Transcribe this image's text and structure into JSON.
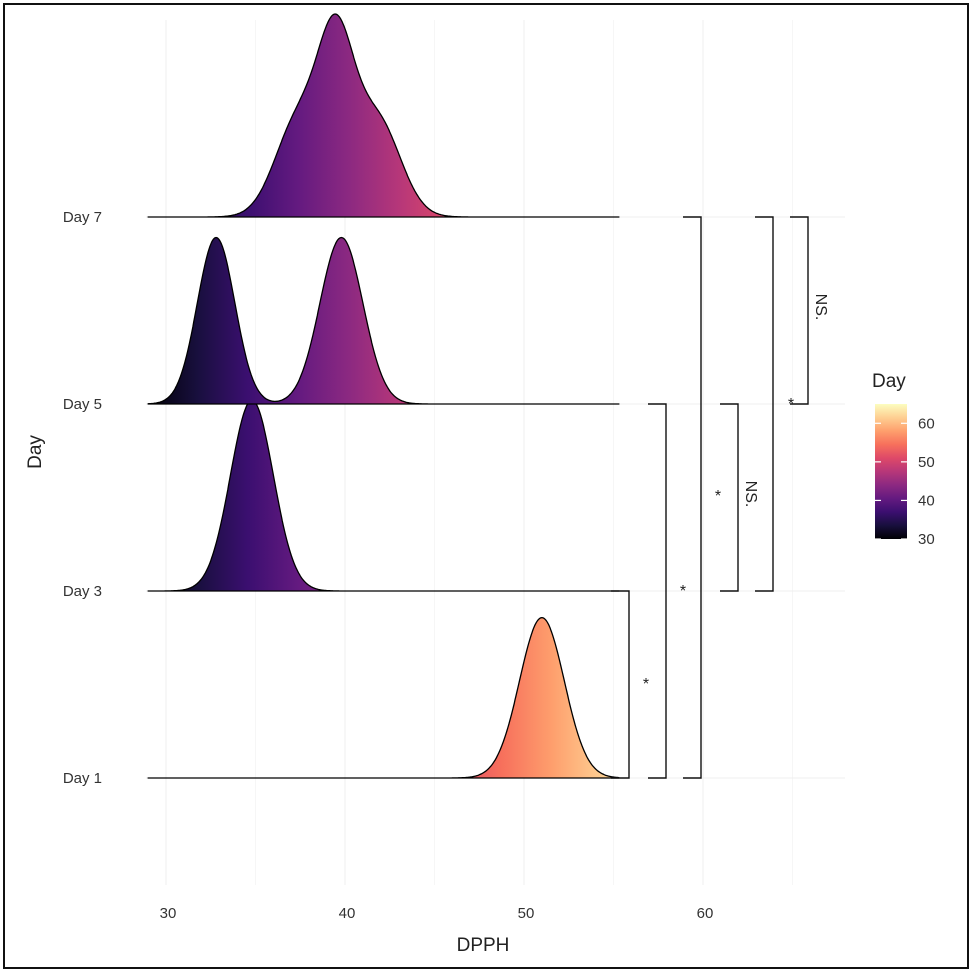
{
  "chart_data": {
    "type": "ridgeline",
    "xlabel": "DPPH",
    "ylabel": "Day",
    "xlim": [
      28.7,
      68
    ],
    "x_ticks": [
      30,
      40,
      50,
      60
    ],
    "categories": [
      "Day 1",
      "Day 3",
      "Day 5",
      "Day 7"
    ],
    "grid": true,
    "legend": {
      "title": "Day",
      "position": "right",
      "type": "colorbar",
      "range": [
        30,
        65
      ],
      "ticks": [
        30,
        40,
        50,
        60
      ],
      "colormap": "magma"
    },
    "series": [
      {
        "name": "Day 1",
        "distribution": "normal",
        "components": [
          {
            "mean": 51.0,
            "sd": 1.25,
            "weight": 1
          }
        ],
        "relative_peak_height": 0.79
      },
      {
        "name": "Day 3",
        "distribution": "normal",
        "components": [
          {
            "mean": 34.8,
            "sd": 1.2,
            "weight": 1
          }
        ],
        "relative_peak_height": 0.94
      },
      {
        "name": "Day 5",
        "distribution": "bimodal",
        "components": [
          {
            "mean": 32.8,
            "sd": 1.05,
            "weight": 1
          },
          {
            "mean": 39.8,
            "sd": 1.2,
            "weight": 1
          }
        ],
        "relative_peak_height": 0.82
      },
      {
        "name": "Day 7",
        "distribution": "multimodal",
        "components": [
          {
            "mean": 39.5,
            "sd": 1.0,
            "weight": 1.3
          },
          {
            "mean": 37.4,
            "sd": 1.3,
            "weight": 0.8
          },
          {
            "mean": 41.8,
            "sd": 1.3,
            "weight": 0.8
          }
        ],
        "relative_peak_height": 1.0
      }
    ],
    "annotations": [
      {
        "from": "Day 1",
        "to": "Day 3",
        "label": "*"
      },
      {
        "from": "Day 1",
        "to": "Day 5",
        "label": "*"
      },
      {
        "from": "Day 1",
        "to": "Day 7",
        "label": ""
      },
      {
        "from": "Day 3",
        "to": "Day 5",
        "label": "NS."
      },
      {
        "from": "Day 3",
        "to": "Day 7",
        "label": "*"
      },
      {
        "from": "Day 5",
        "to": "Day 7",
        "label": "NS."
      },
      {
        "label": "*"
      }
    ]
  }
}
